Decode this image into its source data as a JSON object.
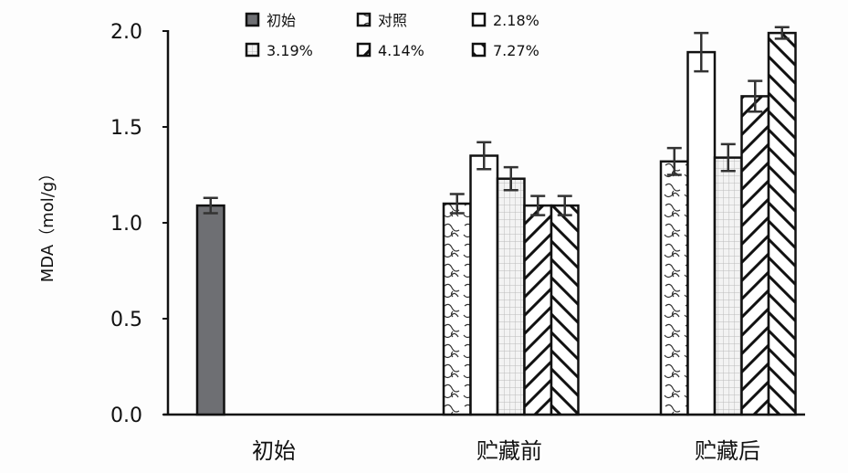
{
  "chart_data": {
    "type": "bar",
    "title": "",
    "xlabel": "",
    "ylabel": "MDA（mol/g）",
    "ylim": [
      0,
      2.0
    ],
    "yticks": [
      "0.0",
      "0.5",
      "1.0",
      "1.5",
      "2.0"
    ],
    "grid": false,
    "legend_position": "top",
    "categories": [
      "初始",
      "贮藏前",
      "贮藏后"
    ],
    "series": [
      {
        "name": "初始",
        "values": [
          1.09,
          null,
          null
        ],
        "errors": [
          0.04,
          null,
          null
        ],
        "pattern": "solid-gray",
        "color": "#6e6f73"
      },
      {
        "name": "对照",
        "values": [
          null,
          1.1,
          1.32
        ],
        "errors": [
          null,
          0.05,
          0.07
        ],
        "pattern": "swirl"
      },
      {
        "name": "2.18%",
        "values": [
          null,
          1.35,
          1.89
        ],
        "errors": [
          null,
          0.07,
          0.1
        ],
        "pattern": "white"
      },
      {
        "name": "3.19%",
        "values": [
          null,
          1.23,
          1.34
        ],
        "errors": [
          null,
          0.06,
          0.07
        ],
        "pattern": "grid"
      },
      {
        "name": "4.14%",
        "values": [
          null,
          1.09,
          1.66
        ],
        "errors": [
          null,
          0.05,
          0.08
        ],
        "pattern": "forward-diagonal"
      },
      {
        "name": "7.27%",
        "values": [
          null,
          1.09,
          1.99
        ],
        "errors": [
          null,
          0.05,
          0.03
        ],
        "pattern": "back-diagonal"
      }
    ]
  }
}
